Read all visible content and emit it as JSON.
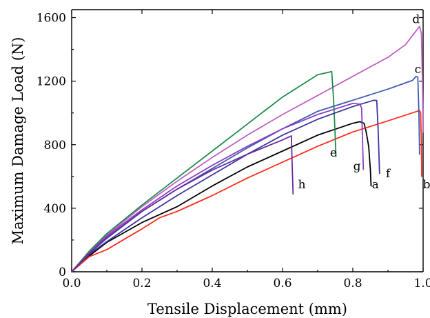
{
  "chart_data": {
    "type": "line",
    "xlabel": "Tensile Displacement (mm)",
    "ylabel": "Maximum Damage Load (N)",
    "xlim": [
      0,
      1.0
    ],
    "ylim": [
      0,
      1650
    ],
    "xticks": [
      0.0,
      0.2,
      0.4,
      0.6,
      0.8,
      1.0
    ],
    "xtick_labels": [
      "0.0",
      "0.2",
      "0.4",
      "0.6",
      "0.8",
      "1.0"
    ],
    "yticks": [
      0,
      400,
      800,
      1200,
      1600
    ],
    "ytick_labels": [
      "0",
      "400",
      "800",
      "1200",
      "1600"
    ],
    "grid": false,
    "series": [
      {
        "name": "a",
        "color": "#000000",
        "points": [
          [
            0,
            0
          ],
          [
            0.05,
            100
          ],
          [
            0.1,
            185
          ],
          [
            0.2,
            310
          ],
          [
            0.3,
            410
          ],
          [
            0.4,
            540
          ],
          [
            0.5,
            660
          ],
          [
            0.6,
            760
          ],
          [
            0.7,
            860
          ],
          [
            0.8,
            935
          ],
          [
            0.82,
            945
          ],
          [
            0.832,
            935
          ],
          [
            0.838,
            880
          ],
          [
            0.845,
            790
          ],
          [
            0.85,
            640
          ],
          [
            0.852,
            540
          ]
        ],
        "label_at": [
          0.864,
          525
        ]
      },
      {
        "name": "b",
        "color": "#ff2a1a",
        "points": [
          [
            0,
            0
          ],
          [
            0.05,
            95
          ],
          [
            0.1,
            140
          ],
          [
            0.2,
            270
          ],
          [
            0.25,
            340
          ],
          [
            0.3,
            380
          ],
          [
            0.4,
            480
          ],
          [
            0.5,
            590
          ],
          [
            0.6,
            690
          ],
          [
            0.7,
            790
          ],
          [
            0.8,
            880
          ],
          [
            0.9,
            950
          ],
          [
            0.99,
            1015
          ],
          [
            0.993,
            1000
          ],
          [
            0.995,
            820
          ],
          [
            0.996,
            600
          ]
        ],
        "label_at": [
          1.01,
          525
        ]
      },
      {
        "name": "c",
        "color": "#3c5ab4",
        "points": [
          [
            0,
            0
          ],
          [
            0.05,
            115
          ],
          [
            0.1,
            210
          ],
          [
            0.2,
            380
          ],
          [
            0.3,
            520
          ],
          [
            0.4,
            650
          ],
          [
            0.5,
            780
          ],
          [
            0.6,
            900
          ],
          [
            0.7,
            1010
          ],
          [
            0.8,
            1080
          ],
          [
            0.9,
            1150
          ],
          [
            0.97,
            1205
          ],
          [
            0.98,
            1230
          ],
          [
            0.985,
            1225
          ],
          [
            0.988,
            1000
          ],
          [
            0.99,
            740
          ]
        ],
        "label_at": [
          0.985,
          1250
        ]
      },
      {
        "name": "d",
        "color": "#c060c0",
        "points": [
          [
            0,
            0
          ],
          [
            0.05,
            125
          ],
          [
            0.1,
            230
          ],
          [
            0.2,
            410
          ],
          [
            0.3,
            570
          ],
          [
            0.4,
            720
          ],
          [
            0.5,
            860
          ],
          [
            0.6,
            990
          ],
          [
            0.7,
            1110
          ],
          [
            0.8,
            1230
          ],
          [
            0.9,
            1350
          ],
          [
            0.95,
            1430
          ],
          [
            0.99,
            1545
          ],
          [
            0.995,
            1500
          ],
          [
            0.998,
            1200
          ],
          [
            1.0,
            880
          ]
        ],
        "label_at": [
          0.98,
          1565
        ]
      },
      {
        "name": "e",
        "color": "#1e8c4a",
        "points": [
          [
            0,
            0
          ],
          [
            0.05,
            130
          ],
          [
            0.1,
            240
          ],
          [
            0.2,
            420
          ],
          [
            0.3,
            590
          ],
          [
            0.4,
            760
          ],
          [
            0.5,
            930
          ],
          [
            0.6,
            1100
          ],
          [
            0.7,
            1240
          ],
          [
            0.74,
            1260
          ],
          [
            0.745,
            1100
          ],
          [
            0.75,
            850
          ],
          [
            0.752,
            725
          ]
        ],
        "label_at": [
          0.745,
          725
        ]
      },
      {
        "name": "f",
        "color": "#3a36a0",
        "points": [
          [
            0,
            0
          ],
          [
            0.05,
            110
          ],
          [
            0.1,
            190
          ],
          [
            0.2,
            340
          ],
          [
            0.3,
            480
          ],
          [
            0.4,
            610
          ],
          [
            0.5,
            740
          ],
          [
            0.6,
            860
          ],
          [
            0.7,
            960
          ],
          [
            0.8,
            1040
          ],
          [
            0.86,
            1080
          ],
          [
            0.868,
            1078
          ],
          [
            0.872,
            900
          ],
          [
            0.876,
            620
          ]
        ],
        "label_at": [
          0.9,
          595
        ]
      },
      {
        "name": "g",
        "color": "#8a40c0",
        "points": [
          [
            0,
            0
          ],
          [
            0.05,
            120
          ],
          [
            0.1,
            225
          ],
          [
            0.2,
            390
          ],
          [
            0.3,
            540
          ],
          [
            0.4,
            670
          ],
          [
            0.5,
            790
          ],
          [
            0.6,
            900
          ],
          [
            0.7,
            990
          ],
          [
            0.8,
            1060
          ],
          [
            0.82,
            1055
          ],
          [
            0.825,
            1030
          ],
          [
            0.827,
            870
          ],
          [
            0.83,
            645
          ]
        ],
        "label_at": [
          0.812,
          640
        ]
      },
      {
        "name": "h",
        "color": "#6a2a9a",
        "points": [
          [
            0,
            0
          ],
          [
            0.05,
            115
          ],
          [
            0.1,
            215
          ],
          [
            0.2,
            380
          ],
          [
            0.3,
            520
          ],
          [
            0.4,
            640
          ],
          [
            0.5,
            740
          ],
          [
            0.6,
            830
          ],
          [
            0.625,
            855
          ],
          [
            0.627,
            700
          ],
          [
            0.63,
            490
          ]
        ],
        "label_at": [
          0.655,
          525
        ]
      }
    ]
  }
}
